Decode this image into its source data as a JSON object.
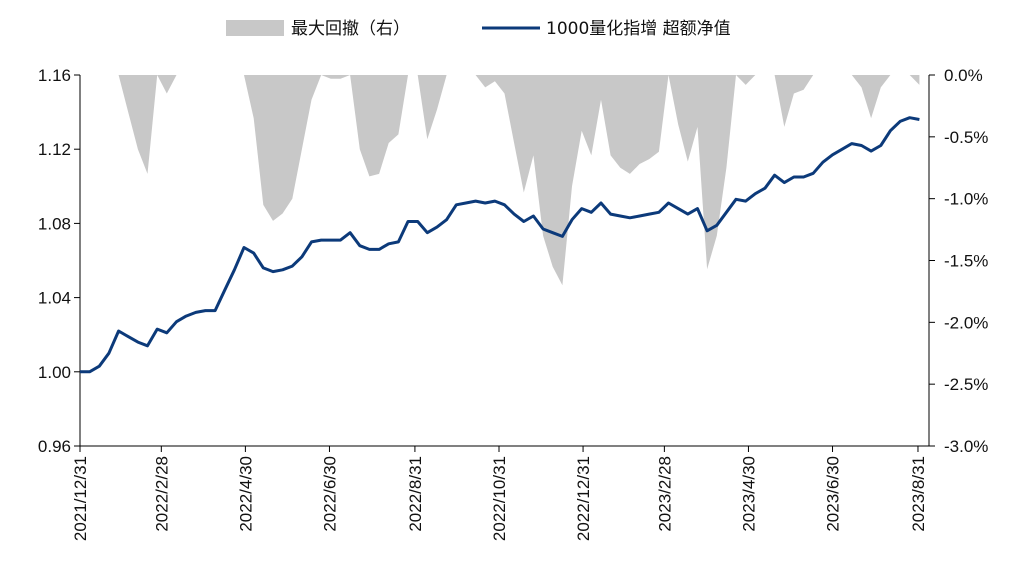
{
  "chart_data": {
    "type": "line+area",
    "legend": {
      "placement": "top",
      "items": [
        {
          "key": "drawdown",
          "label": "最大回撤（右）",
          "marker": "area",
          "color": "#c8c8c8"
        },
        {
          "key": "nav",
          "label": "1000量化指增 超额净值",
          "marker": "line",
          "color": "#0c3a7a"
        }
      ]
    },
    "left_axis": {
      "ylim": [
        0.96,
        1.16
      ],
      "ticks": [
        "0.96",
        "1.00",
        "1.04",
        "1.08",
        "1.12",
        "1.16"
      ]
    },
    "right_axis": {
      "ylim": [
        -3.0,
        0.0
      ],
      "unit": "%",
      "ticks": [
        "0.0%",
        "-0.5%",
        "-1.0%",
        "-1.5%",
        "-2.0%",
        "-2.5%",
        "-3.0%"
      ]
    },
    "x_axis": {
      "type": "date",
      "range": [
        "2021-12-31",
        "2023-09-08"
      ],
      "ticks": [
        {
          "date": "2021-12-31",
          "label": "2021/12/31"
        },
        {
          "date": "2022-02-28",
          "label": "2022/2/28"
        },
        {
          "date": "2022-04-30",
          "label": "2022/4/30"
        },
        {
          "date": "2022-06-30",
          "label": "2022/6/30"
        },
        {
          "date": "2022-08-31",
          "label": "2022/8/31"
        },
        {
          "date": "2022-10-31",
          "label": "2022/10/31"
        },
        {
          "date": "2022-12-31",
          "label": "2022/12/31"
        },
        {
          "date": "2023-02-28",
          "label": "2023/2/28"
        },
        {
          "date": "2023-04-30",
          "label": "2023/4/30"
        },
        {
          "date": "2023-06-30",
          "label": "2023/6/30"
        },
        {
          "date": "2023-08-31",
          "label": "2023/8/31"
        }
      ]
    },
    "series": [
      {
        "key": "nav",
        "name": "1000量化指增 超额净值",
        "axis": "left",
        "color": "#0c3a7a",
        "points": [
          [
            "2021-12-31",
            1.0
          ],
          [
            "2022-01-07",
            1.0
          ],
          [
            "2022-01-14",
            1.003
          ],
          [
            "2022-01-21",
            1.01
          ],
          [
            "2022-01-28",
            1.022
          ],
          [
            "2022-02-04",
            1.019
          ],
          [
            "2022-02-11",
            1.016
          ],
          [
            "2022-02-18",
            1.014
          ],
          [
            "2022-02-25",
            1.023
          ],
          [
            "2022-03-04",
            1.021
          ],
          [
            "2022-03-11",
            1.027
          ],
          [
            "2022-03-18",
            1.03
          ],
          [
            "2022-03-25",
            1.032
          ],
          [
            "2022-04-01",
            1.033
          ],
          [
            "2022-04-08",
            1.033
          ],
          [
            "2022-04-15",
            1.044
          ],
          [
            "2022-04-22",
            1.055
          ],
          [
            "2022-04-29",
            1.067
          ],
          [
            "2022-05-06",
            1.064
          ],
          [
            "2022-05-13",
            1.056
          ],
          [
            "2022-05-20",
            1.054
          ],
          [
            "2022-05-27",
            1.055
          ],
          [
            "2022-06-03",
            1.057
          ],
          [
            "2022-06-10",
            1.062
          ],
          [
            "2022-06-17",
            1.07
          ],
          [
            "2022-06-24",
            1.071
          ],
          [
            "2022-07-01",
            1.071
          ],
          [
            "2022-07-08",
            1.071
          ],
          [
            "2022-07-15",
            1.075
          ],
          [
            "2022-07-22",
            1.068
          ],
          [
            "2022-07-29",
            1.066
          ],
          [
            "2022-08-05",
            1.066
          ],
          [
            "2022-08-12",
            1.069
          ],
          [
            "2022-08-19",
            1.07
          ],
          [
            "2022-08-26",
            1.081
          ],
          [
            "2022-09-02",
            1.081
          ],
          [
            "2022-09-09",
            1.075
          ],
          [
            "2022-09-16",
            1.078
          ],
          [
            "2022-09-23",
            1.082
          ],
          [
            "2022-09-30",
            1.09
          ],
          [
            "2022-10-07",
            1.091
          ],
          [
            "2022-10-14",
            1.092
          ],
          [
            "2022-10-21",
            1.091
          ],
          [
            "2022-10-28",
            1.092
          ],
          [
            "2022-11-04",
            1.09
          ],
          [
            "2022-11-11",
            1.085
          ],
          [
            "2022-11-18",
            1.081
          ],
          [
            "2022-11-25",
            1.084
          ],
          [
            "2022-12-02",
            1.077
          ],
          [
            "2022-12-09",
            1.075
          ],
          [
            "2022-12-16",
            1.073
          ],
          [
            "2022-12-23",
            1.082
          ],
          [
            "2022-12-30",
            1.088
          ],
          [
            "2023-01-06",
            1.086
          ],
          [
            "2023-01-13",
            1.091
          ],
          [
            "2023-01-20",
            1.085
          ],
          [
            "2023-01-27",
            1.084
          ],
          [
            "2023-02-03",
            1.083
          ],
          [
            "2023-02-10",
            1.084
          ],
          [
            "2023-02-17",
            1.085
          ],
          [
            "2023-02-24",
            1.086
          ],
          [
            "2023-03-03",
            1.091
          ],
          [
            "2023-03-10",
            1.088
          ],
          [
            "2023-03-17",
            1.085
          ],
          [
            "2023-03-24",
            1.088
          ],
          [
            "2023-03-31",
            1.076
          ],
          [
            "2023-04-07",
            1.079
          ],
          [
            "2023-04-14",
            1.086
          ],
          [
            "2023-04-21",
            1.093
          ],
          [
            "2023-04-28",
            1.092
          ],
          [
            "2023-05-05",
            1.096
          ],
          [
            "2023-05-12",
            1.099
          ],
          [
            "2023-05-19",
            1.106
          ],
          [
            "2023-05-26",
            1.102
          ],
          [
            "2023-06-02",
            1.105
          ],
          [
            "2023-06-09",
            1.105
          ],
          [
            "2023-06-16",
            1.107
          ],
          [
            "2023-06-23",
            1.113
          ],
          [
            "2023-06-30",
            1.117
          ],
          [
            "2023-07-07",
            1.12
          ],
          [
            "2023-07-14",
            1.123
          ],
          [
            "2023-07-21",
            1.122
          ],
          [
            "2023-07-28",
            1.119
          ],
          [
            "2023-08-04",
            1.122
          ],
          [
            "2023-08-11",
            1.13
          ],
          [
            "2023-08-18",
            1.135
          ],
          [
            "2023-08-25",
            1.137
          ],
          [
            "2023-09-01",
            1.136
          ]
        ]
      },
      {
        "key": "drawdown",
        "name": "最大回撤（右）",
        "axis": "right",
        "unit": "%",
        "color": "#c8c8c8",
        "points": [
          [
            "2021-12-31",
            0
          ],
          [
            "2022-01-28",
            0
          ],
          [
            "2022-02-04",
            -0.3
          ],
          [
            "2022-02-11",
            -0.6
          ],
          [
            "2022-02-18",
            -0.8
          ],
          [
            "2022-02-25",
            0
          ],
          [
            "2022-03-04",
            -0.15
          ],
          [
            "2022-03-11",
            0
          ],
          [
            "2022-04-29",
            0
          ],
          [
            "2022-05-06",
            -0.35
          ],
          [
            "2022-05-13",
            -1.05
          ],
          [
            "2022-05-20",
            -1.18
          ],
          [
            "2022-05-27",
            -1.12
          ],
          [
            "2022-06-03",
            -1.0
          ],
          [
            "2022-06-10",
            -0.6
          ],
          [
            "2022-06-17",
            -0.2
          ],
          [
            "2022-06-24",
            0
          ],
          [
            "2022-07-01",
            -0.03
          ],
          [
            "2022-07-08",
            -0.03
          ],
          [
            "2022-07-15",
            0
          ],
          [
            "2022-07-22",
            -0.6
          ],
          [
            "2022-07-29",
            -0.82
          ],
          [
            "2022-08-05",
            -0.8
          ],
          [
            "2022-08-12",
            -0.55
          ],
          [
            "2022-08-19",
            -0.48
          ],
          [
            "2022-08-26",
            0
          ],
          [
            "2022-09-02",
            0
          ],
          [
            "2022-09-09",
            -0.52
          ],
          [
            "2022-09-16",
            -0.28
          ],
          [
            "2022-09-23",
            0
          ],
          [
            "2022-10-14",
            0
          ],
          [
            "2022-10-21",
            -0.1
          ],
          [
            "2022-10-28",
            -0.05
          ],
          [
            "2022-11-04",
            -0.15
          ],
          [
            "2022-11-11",
            -0.55
          ],
          [
            "2022-11-18",
            -0.95
          ],
          [
            "2022-11-25",
            -0.65
          ],
          [
            "2022-12-02",
            -1.3
          ],
          [
            "2022-12-09",
            -1.55
          ],
          [
            "2022-12-16",
            -1.7
          ],
          [
            "2022-12-23",
            -0.9
          ],
          [
            "2022-12-30",
            -0.45
          ],
          [
            "2023-01-06",
            -0.65
          ],
          [
            "2023-01-13",
            -0.2
          ],
          [
            "2023-01-20",
            -0.65
          ],
          [
            "2023-01-27",
            -0.75
          ],
          [
            "2023-02-03",
            -0.8
          ],
          [
            "2023-02-10",
            -0.72
          ],
          [
            "2023-02-17",
            -0.68
          ],
          [
            "2023-02-24",
            -0.62
          ],
          [
            "2023-03-03",
            0
          ],
          [
            "2023-03-10",
            -0.4
          ],
          [
            "2023-03-17",
            -0.7
          ],
          [
            "2023-03-24",
            -0.42
          ],
          [
            "2023-03-31",
            -1.57
          ],
          [
            "2023-04-07",
            -1.3
          ],
          [
            "2023-04-14",
            -0.75
          ],
          [
            "2023-04-21",
            0
          ],
          [
            "2023-04-28",
            -0.08
          ],
          [
            "2023-05-05",
            0
          ],
          [
            "2023-05-19",
            0
          ],
          [
            "2023-05-26",
            -0.42
          ],
          [
            "2023-06-02",
            -0.15
          ],
          [
            "2023-06-09",
            -0.12
          ],
          [
            "2023-06-16",
            0
          ],
          [
            "2023-07-14",
            0
          ],
          [
            "2023-07-21",
            -0.1
          ],
          [
            "2023-07-28",
            -0.35
          ],
          [
            "2023-08-04",
            -0.1
          ],
          [
            "2023-08-11",
            0
          ],
          [
            "2023-08-25",
            0
          ],
          [
            "2023-09-01",
            -0.08
          ]
        ]
      }
    ]
  }
}
